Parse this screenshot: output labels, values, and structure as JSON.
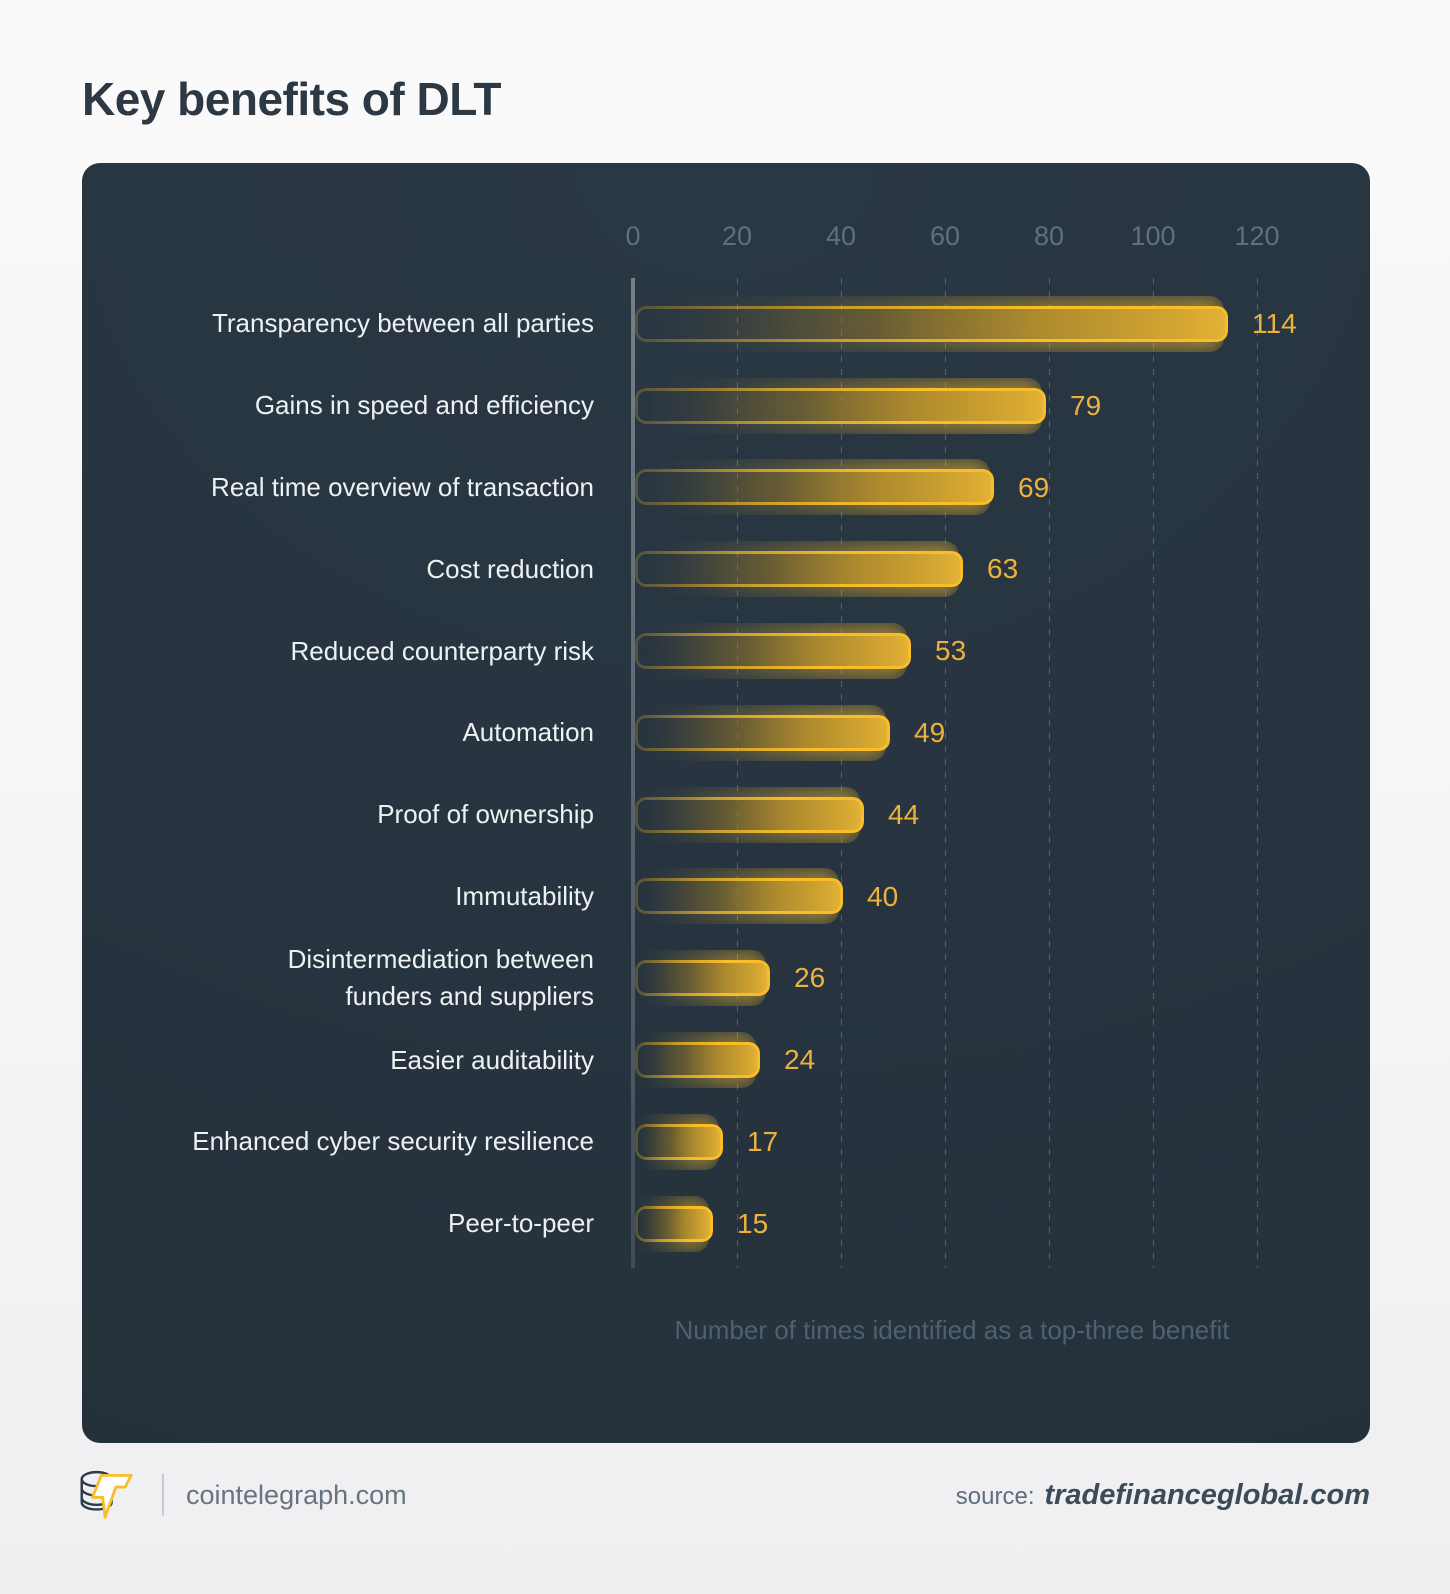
{
  "title": "Key benefits of DLT",
  "chart_data": {
    "type": "bar",
    "orientation": "horizontal",
    "title": "Key benefits of DLT",
    "categories": [
      "Transparency between all parties",
      "Gains in speed and efficiency",
      "Real time overview of transaction",
      "Cost reduction",
      "Reduced counterparty risk",
      "Automation",
      "Proof of ownership",
      "Immutability",
      "Disintermediation between\nfunders and suppliers",
      "Easier auditability",
      "Enhanced cyber security resilience",
      "Peer-to-peer"
    ],
    "values": [
      114,
      79,
      69,
      63,
      53,
      49,
      44,
      40,
      26,
      24,
      17,
      15
    ],
    "xlabel": "Number of times identified as a top-three benefit",
    "x_ticks": [
      0,
      20,
      40,
      60,
      80,
      100,
      120
    ],
    "xlim": [
      0,
      130
    ],
    "grid": "vertical-dashed",
    "legend_position": "none",
    "bar_border_color": "#f8bd28",
    "bar_fill_end_color": "#e2b236",
    "value_label_color": "#edb23c"
  },
  "footer": {
    "brand_icon": "cointelegraph-coins-lightning-logo",
    "brand_text": "cointelegraph.com",
    "source_label": "source:",
    "source_value": "tradefinanceglobal.com"
  },
  "colors": {
    "page_background": "#f7f7f9",
    "panel_background": "#273440",
    "title_text": "#2c3944",
    "category_text": "#eef1f2",
    "tick_text": "#5e7080",
    "caption_text": "#4e6072",
    "accent_yellow": "#f8bd28"
  }
}
